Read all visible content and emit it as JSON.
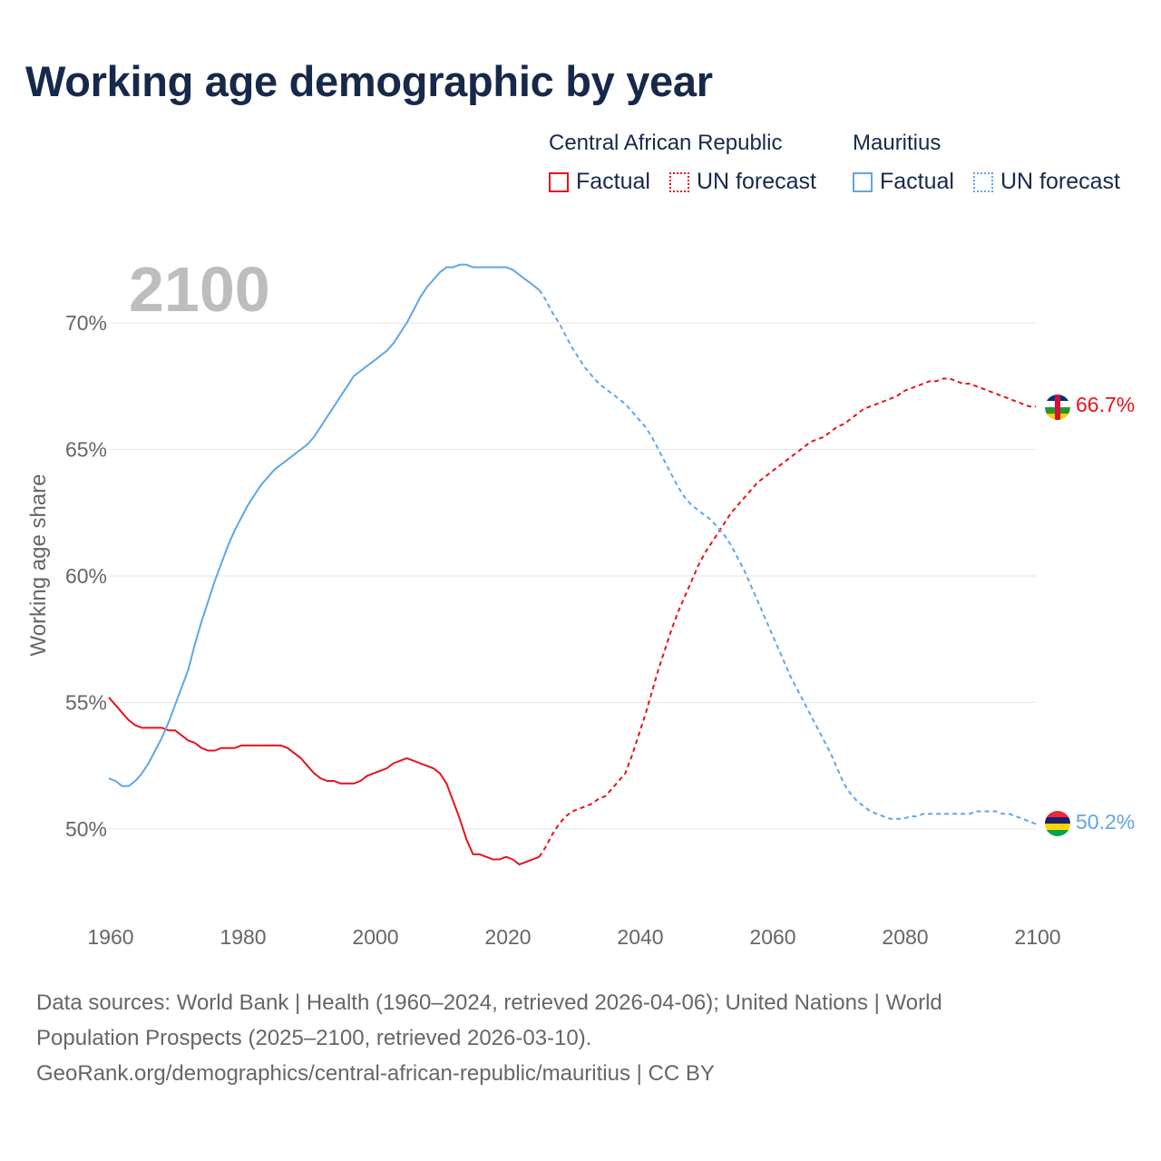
{
  "title": "Working age demographic by year",
  "legend": {
    "groups": [
      {
        "name": "Central African Republic",
        "factual": "Factual",
        "forecast": "UN forecast",
        "color": "#e8121a"
      },
      {
        "name": "Mauritius",
        "factual": "Factual",
        "forecast": "UN forecast",
        "color": "#5ea6e6"
      }
    ]
  },
  "chart_data": {
    "type": "line",
    "title": "Working age demographic by year",
    "ylabel": "Working age share",
    "xlabel": "",
    "year_label": "2100",
    "xlim": [
      1960,
      2100
    ],
    "ylim": [
      47,
      73
    ],
    "x_ticks": [
      1960,
      1980,
      2000,
      2020,
      2040,
      2060,
      2080,
      2100
    ],
    "x_tick_labels": [
      "1960",
      "1980",
      "2000",
      "2020",
      "2040",
      "2060",
      "2080",
      "2100"
    ],
    "y_ticks": [
      50,
      55,
      60,
      65,
      70
    ],
    "y_tick_labels": [
      "50%",
      "55%",
      "60%",
      "65%",
      "70%"
    ],
    "factual_end_year": 2025,
    "series": [
      {
        "name": "Central African Republic",
        "color": "#e8121a",
        "end_label": "66.7%",
        "points": [
          [
            1960,
            55.2
          ],
          [
            1961,
            54.9
          ],
          [
            1962,
            54.6
          ],
          [
            1963,
            54.3
          ],
          [
            1964,
            54.1
          ],
          [
            1965,
            54.0
          ],
          [
            1966,
            54.0
          ],
          [
            1967,
            54.0
          ],
          [
            1968,
            54.0
          ],
          [
            1969,
            53.9
          ],
          [
            1970,
            53.9
          ],
          [
            1971,
            53.7
          ],
          [
            1972,
            53.5
          ],
          [
            1973,
            53.4
          ],
          [
            1974,
            53.2
          ],
          [
            1975,
            53.1
          ],
          [
            1976,
            53.1
          ],
          [
            1977,
            53.2
          ],
          [
            1978,
            53.2
          ],
          [
            1979,
            53.2
          ],
          [
            1980,
            53.3
          ],
          [
            1981,
            53.3
          ],
          [
            1982,
            53.3
          ],
          [
            1983,
            53.3
          ],
          [
            1984,
            53.3
          ],
          [
            1985,
            53.3
          ],
          [
            1986,
            53.3
          ],
          [
            1987,
            53.2
          ],
          [
            1988,
            53.0
          ],
          [
            1989,
            52.8
          ],
          [
            1990,
            52.5
          ],
          [
            1991,
            52.2
          ],
          [
            1992,
            52.0
          ],
          [
            1993,
            51.9
          ],
          [
            1994,
            51.9
          ],
          [
            1995,
            51.8
          ],
          [
            1996,
            51.8
          ],
          [
            1997,
            51.8
          ],
          [
            1998,
            51.9
          ],
          [
            1999,
            52.1
          ],
          [
            2000,
            52.2
          ],
          [
            2001,
            52.3
          ],
          [
            2002,
            52.4
          ],
          [
            2003,
            52.6
          ],
          [
            2004,
            52.7
          ],
          [
            2005,
            52.8
          ],
          [
            2006,
            52.7
          ],
          [
            2007,
            52.6
          ],
          [
            2008,
            52.5
          ],
          [
            2009,
            52.4
          ],
          [
            2010,
            52.2
          ],
          [
            2011,
            51.8
          ],
          [
            2012,
            51.1
          ],
          [
            2013,
            50.4
          ],
          [
            2014,
            49.6
          ],
          [
            2015,
            49.0
          ],
          [
            2016,
            49.0
          ],
          [
            2017,
            48.9
          ],
          [
            2018,
            48.8
          ],
          [
            2019,
            48.8
          ],
          [
            2020,
            48.9
          ],
          [
            2021,
            48.8
          ],
          [
            2022,
            48.6
          ],
          [
            2023,
            48.7
          ],
          [
            2024,
            48.8
          ],
          [
            2025,
            48.9
          ],
          [
            2026,
            49.3
          ],
          [
            2027,
            49.8
          ],
          [
            2028,
            50.2
          ],
          [
            2029,
            50.5
          ],
          [
            2030,
            50.7
          ],
          [
            2031,
            50.8
          ],
          [
            2032,
            50.9
          ],
          [
            2033,
            51.0
          ],
          [
            2034,
            51.2
          ],
          [
            2035,
            51.3
          ],
          [
            2036,
            51.6
          ],
          [
            2037,
            51.9
          ],
          [
            2038,
            52.2
          ],
          [
            2039,
            52.9
          ],
          [
            2040,
            53.7
          ],
          [
            2041,
            54.5
          ],
          [
            2042,
            55.4
          ],
          [
            2043,
            56.3
          ],
          [
            2044,
            57.1
          ],
          [
            2045,
            57.9
          ],
          [
            2046,
            58.6
          ],
          [
            2047,
            59.2
          ],
          [
            2048,
            59.8
          ],
          [
            2049,
            60.4
          ],
          [
            2050,
            60.9
          ],
          [
            2051,
            61.3
          ],
          [
            2052,
            61.7
          ],
          [
            2053,
            62.1
          ],
          [
            2054,
            62.5
          ],
          [
            2055,
            62.8
          ],
          [
            2056,
            63.1
          ],
          [
            2057,
            63.4
          ],
          [
            2058,
            63.7
          ],
          [
            2059,
            63.9
          ],
          [
            2060,
            64.1
          ],
          [
            2061,
            64.3
          ],
          [
            2062,
            64.5
          ],
          [
            2063,
            64.7
          ],
          [
            2064,
            64.9
          ],
          [
            2065,
            65.1
          ],
          [
            2066,
            65.3
          ],
          [
            2067,
            65.4
          ],
          [
            2068,
            65.5
          ],
          [
            2069,
            65.7
          ],
          [
            2070,
            65.9
          ],
          [
            2071,
            66.0
          ],
          [
            2072,
            66.2
          ],
          [
            2073,
            66.4
          ],
          [
            2074,
            66.6
          ],
          [
            2075,
            66.7
          ],
          [
            2076,
            66.8
          ],
          [
            2077,
            66.9
          ],
          [
            2078,
            67.0
          ],
          [
            2079,
            67.1
          ],
          [
            2080,
            67.3
          ],
          [
            2081,
            67.4
          ],
          [
            2082,
            67.5
          ],
          [
            2083,
            67.6
          ],
          [
            2084,
            67.7
          ],
          [
            2085,
            67.7
          ],
          [
            2086,
            67.8
          ],
          [
            2087,
            67.8
          ],
          [
            2088,
            67.7
          ],
          [
            2089,
            67.6
          ],
          [
            2090,
            67.6
          ],
          [
            2091,
            67.5
          ],
          [
            2092,
            67.4
          ],
          [
            2093,
            67.3
          ],
          [
            2094,
            67.2
          ],
          [
            2095,
            67.1
          ],
          [
            2096,
            67.0
          ],
          [
            2097,
            66.9
          ],
          [
            2098,
            66.8
          ],
          [
            2099,
            66.7
          ],
          [
            2100,
            66.7
          ]
        ]
      },
      {
        "name": "Mauritius",
        "color": "#5ea6e6",
        "end_label": "50.2%",
        "points": [
          [
            1960,
            52.0
          ],
          [
            1961,
            51.9
          ],
          [
            1962,
            51.7
          ],
          [
            1963,
            51.7
          ],
          [
            1964,
            51.9
          ],
          [
            1965,
            52.2
          ],
          [
            1966,
            52.6
          ],
          [
            1967,
            53.1
          ],
          [
            1968,
            53.6
          ],
          [
            1969,
            54.2
          ],
          [
            1970,
            54.9
          ],
          [
            1971,
            55.6
          ],
          [
            1972,
            56.3
          ],
          [
            1973,
            57.3
          ],
          [
            1974,
            58.2
          ],
          [
            1975,
            59.0
          ],
          [
            1976,
            59.8
          ],
          [
            1977,
            60.5
          ],
          [
            1978,
            61.2
          ],
          [
            1979,
            61.8
          ],
          [
            1980,
            62.3
          ],
          [
            1981,
            62.8
          ],
          [
            1982,
            63.2
          ],
          [
            1983,
            63.6
          ],
          [
            1984,
            63.9
          ],
          [
            1985,
            64.2
          ],
          [
            1986,
            64.4
          ],
          [
            1987,
            64.6
          ],
          [
            1988,
            64.8
          ],
          [
            1989,
            65.0
          ],
          [
            1990,
            65.2
          ],
          [
            1991,
            65.5
          ],
          [
            1992,
            65.9
          ],
          [
            1993,
            66.3
          ],
          [
            1994,
            66.7
          ],
          [
            1995,
            67.1
          ],
          [
            1996,
            67.5
          ],
          [
            1997,
            67.9
          ],
          [
            1998,
            68.1
          ],
          [
            1999,
            68.3
          ],
          [
            2000,
            68.5
          ],
          [
            2001,
            68.7
          ],
          [
            2002,
            68.9
          ],
          [
            2003,
            69.2
          ],
          [
            2004,
            69.6
          ],
          [
            2005,
            70.0
          ],
          [
            2006,
            70.5
          ],
          [
            2007,
            71.0
          ],
          [
            2008,
            71.4
          ],
          [
            2009,
            71.7
          ],
          [
            2010,
            72.0
          ],
          [
            2011,
            72.2
          ],
          [
            2012,
            72.2
          ],
          [
            2013,
            72.3
          ],
          [
            2014,
            72.3
          ],
          [
            2015,
            72.2
          ],
          [
            2016,
            72.2
          ],
          [
            2017,
            72.2
          ],
          [
            2018,
            72.2
          ],
          [
            2019,
            72.2
          ],
          [
            2020,
            72.2
          ],
          [
            2021,
            72.1
          ],
          [
            2022,
            71.9
          ],
          [
            2023,
            71.7
          ],
          [
            2024,
            71.5
          ],
          [
            2025,
            71.3
          ],
          [
            2026,
            70.9
          ],
          [
            2027,
            70.4
          ],
          [
            2028,
            70.0
          ],
          [
            2029,
            69.5
          ],
          [
            2030,
            69.0
          ],
          [
            2031,
            68.6
          ],
          [
            2032,
            68.2
          ],
          [
            2033,
            67.9
          ],
          [
            2034,
            67.6
          ],
          [
            2035,
            67.4
          ],
          [
            2036,
            67.2
          ],
          [
            2037,
            67.0
          ],
          [
            2038,
            66.8
          ],
          [
            2039,
            66.5
          ],
          [
            2040,
            66.2
          ],
          [
            2041,
            65.9
          ],
          [
            2042,
            65.5
          ],
          [
            2043,
            65.0
          ],
          [
            2044,
            64.5
          ],
          [
            2045,
            64.0
          ],
          [
            2046,
            63.5
          ],
          [
            2047,
            63.1
          ],
          [
            2048,
            62.8
          ],
          [
            2049,
            62.6
          ],
          [
            2050,
            62.4
          ],
          [
            2051,
            62.2
          ],
          [
            2052,
            61.9
          ],
          [
            2053,
            61.6
          ],
          [
            2054,
            61.2
          ],
          [
            2055,
            60.7
          ],
          [
            2056,
            60.2
          ],
          [
            2057,
            59.6
          ],
          [
            2058,
            59.0
          ],
          [
            2059,
            58.4
          ],
          [
            2060,
            57.8
          ],
          [
            2061,
            57.2
          ],
          [
            2062,
            56.6
          ],
          [
            2063,
            56.0
          ],
          [
            2064,
            55.5
          ],
          [
            2065,
            55.0
          ],
          [
            2066,
            54.5
          ],
          [
            2067,
            54.0
          ],
          [
            2068,
            53.5
          ],
          [
            2069,
            53.0
          ],
          [
            2070,
            52.4
          ],
          [
            2071,
            51.8
          ],
          [
            2072,
            51.4
          ],
          [
            2073,
            51.1
          ],
          [
            2074,
            50.9
          ],
          [
            2075,
            50.7
          ],
          [
            2076,
            50.6
          ],
          [
            2077,
            50.5
          ],
          [
            2078,
            50.4
          ],
          [
            2079,
            50.4
          ],
          [
            2080,
            50.4
          ],
          [
            2081,
            50.5
          ],
          [
            2082,
            50.5
          ],
          [
            2083,
            50.6
          ],
          [
            2084,
            50.6
          ],
          [
            2085,
            50.6
          ],
          [
            2086,
            50.6
          ],
          [
            2087,
            50.6
          ],
          [
            2088,
            50.6
          ],
          [
            2089,
            50.6
          ],
          [
            2090,
            50.6
          ],
          [
            2091,
            50.7
          ],
          [
            2092,
            50.7
          ],
          [
            2093,
            50.7
          ],
          [
            2094,
            50.7
          ],
          [
            2095,
            50.6
          ],
          [
            2096,
            50.6
          ],
          [
            2097,
            50.5
          ],
          [
            2098,
            50.4
          ],
          [
            2099,
            50.3
          ],
          [
            2100,
            50.2
          ]
        ]
      }
    ]
  },
  "footer": {
    "line1": "Data sources: World Bank | Health (1960–2024, retrieved 2026-04-06); United Nations | World",
    "line2": "Population Prospects (2025–2100, retrieved 2026-03-10).",
    "line3": "GeoRank.org/demographics/central-african-republic/mauritius | CC BY"
  }
}
